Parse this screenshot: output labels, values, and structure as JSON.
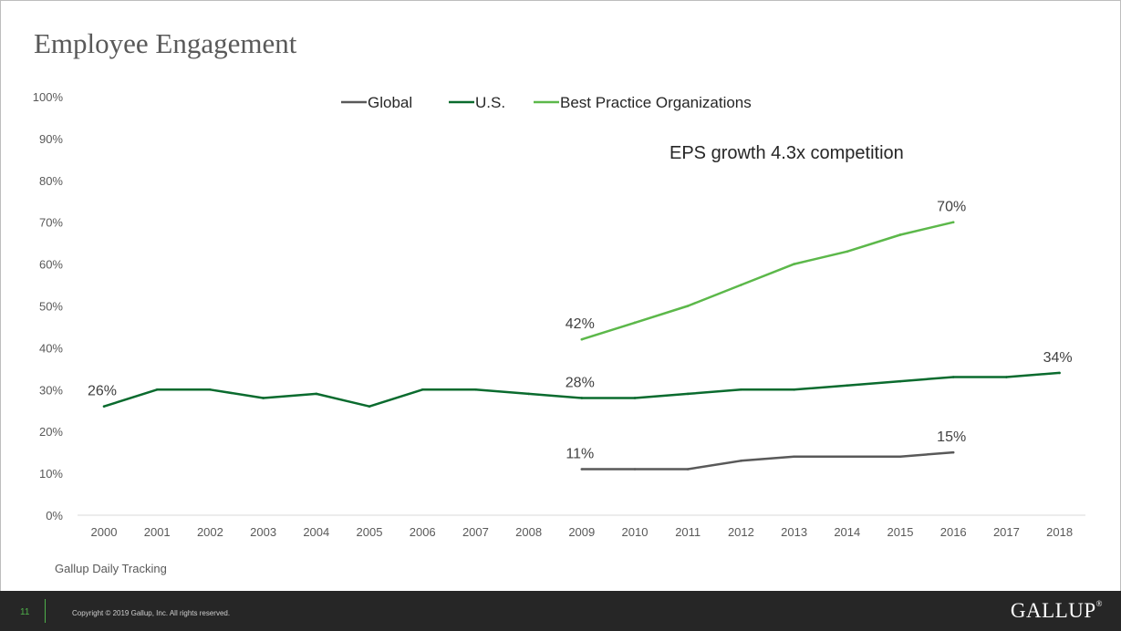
{
  "slide": {
    "title": "Employee Engagement",
    "source": "Gallup Daily Tracking"
  },
  "footer": {
    "page_number": "11",
    "copyright": "Copyright © 2019 Gallup, Inc. All rights reserved.",
    "logo": "GALLUP",
    "logo_mark": "®"
  },
  "chart_data": {
    "type": "line",
    "title": "",
    "annotation": "EPS growth 4.3x competition",
    "x": [
      "2000",
      "2001",
      "2002",
      "2003",
      "2004",
      "2005",
      "2006",
      "2007",
      "2008",
      "2009",
      "2010",
      "2011",
      "2012",
      "2013",
      "2014",
      "2015",
      "2016",
      "2017",
      "2018"
    ],
    "ylim": [
      0,
      100
    ],
    "y_ticks": [
      "0%",
      "10%",
      "20%",
      "30%",
      "40%",
      "50%",
      "60%",
      "70%",
      "80%",
      "90%",
      "100%"
    ],
    "grid": false,
    "legend_position": "top-center",
    "series": [
      {
        "name": "Global",
        "color": "#595959",
        "values": [
          null,
          null,
          null,
          null,
          null,
          null,
          null,
          null,
          null,
          11,
          11,
          11,
          13,
          14,
          14,
          14,
          15,
          null,
          null
        ],
        "labels": [
          {
            "year": "2009",
            "text": "11%"
          },
          {
            "year": "2016",
            "text": "15%"
          }
        ]
      },
      {
        "name": "U.S.",
        "color": "#0a6b2e",
        "values": [
          26,
          30,
          30,
          28,
          29,
          26,
          30,
          30,
          29,
          28,
          28,
          29,
          30,
          30,
          31,
          32,
          33,
          33,
          34
        ],
        "labels": [
          {
            "year": "2000",
            "text": "26%"
          },
          {
            "year": "2009",
            "text": "28%"
          },
          {
            "year": "2018",
            "text": "34%"
          }
        ]
      },
      {
        "name": "Best Practice Organizations",
        "color": "#5cb84a",
        "values": [
          null,
          null,
          null,
          null,
          null,
          null,
          null,
          null,
          null,
          42,
          46,
          50,
          55,
          60,
          63,
          67,
          70,
          null,
          null
        ],
        "labels": [
          {
            "year": "2009",
            "text": "42%"
          },
          {
            "year": "2016",
            "text": "70%"
          }
        ]
      }
    ]
  }
}
